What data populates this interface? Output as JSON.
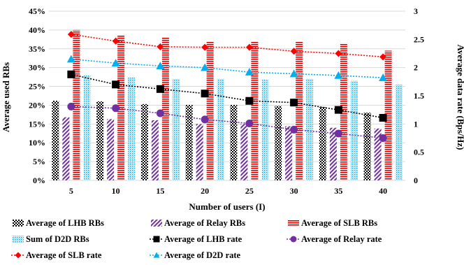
{
  "chart_data": {
    "type": "bar",
    "xlabel": "Number of users (I)",
    "ylabel": "Average used RBs",
    "y2label": "Average data rate (Bps/Hz)",
    "categories": [
      "5",
      "10",
      "15",
      "20",
      "25",
      "30",
      "35",
      "40"
    ],
    "ylim": [
      0,
      45
    ],
    "y2lim": [
      0,
      3
    ],
    "yticks": [
      "0%",
      "5%",
      "10%",
      "15%",
      "20%",
      "25%",
      "30%",
      "35%",
      "40%",
      "45%"
    ],
    "y2ticks": [
      "0",
      "0.5",
      "1",
      "1.5",
      "2",
      "2.5",
      "3"
    ],
    "grid": "horizontal",
    "legend": "bottom",
    "bar_series": [
      {
        "name": "Average of LHB RBs",
        "pattern": "checker",
        "color": "#000000",
        "values": [
          21.2,
          21.0,
          20.3,
          20.1,
          20.1,
          19.8,
          19.5,
          18.0
        ]
      },
      {
        "name": "Average of Relay RBs",
        "pattern": "diagonal",
        "color": "#7030a0",
        "values": [
          16.8,
          16.3,
          16.0,
          15.0,
          15.0,
          14.4,
          14.0,
          13.8
        ]
      },
      {
        "name": "Average of SLB RBs",
        "pattern": "hstripe",
        "color": "#e00000",
        "values": [
          40.0,
          38.5,
          38.0,
          37.0,
          37.0,
          37.0,
          36.5,
          34.5
        ]
      },
      {
        "name": "Sum of D2D RBs",
        "pattern": "dots",
        "color": "#00b0f0",
        "values": [
          28.0,
          27.5,
          27.0,
          27.0,
          26.8,
          27.0,
          26.5,
          25.5
        ]
      }
    ],
    "line_series": [
      {
        "name": "Average of LHB rate",
        "marker": "square",
        "color": "#000000",
        "values": [
          1.88,
          1.7,
          1.62,
          1.54,
          1.41,
          1.38,
          1.25,
          1.11
        ]
      },
      {
        "name": "Average of Relay rate",
        "marker": "circle",
        "color": "#7030a0",
        "values": [
          1.31,
          1.28,
          1.19,
          1.08,
          1.01,
          0.9,
          0.83,
          0.75
        ]
      },
      {
        "name": "Average of SLB rate",
        "marker": "diamond",
        "color": "#ff0000",
        "values": [
          2.59,
          2.47,
          2.37,
          2.36,
          2.36,
          2.29,
          2.25,
          2.19
        ]
      },
      {
        "name": "Average of D2D rate",
        "marker": "triangle",
        "color": "#00b0f0",
        "values": [
          2.15,
          2.08,
          2.03,
          2.0,
          1.92,
          1.89,
          1.86,
          1.82
        ]
      }
    ]
  }
}
